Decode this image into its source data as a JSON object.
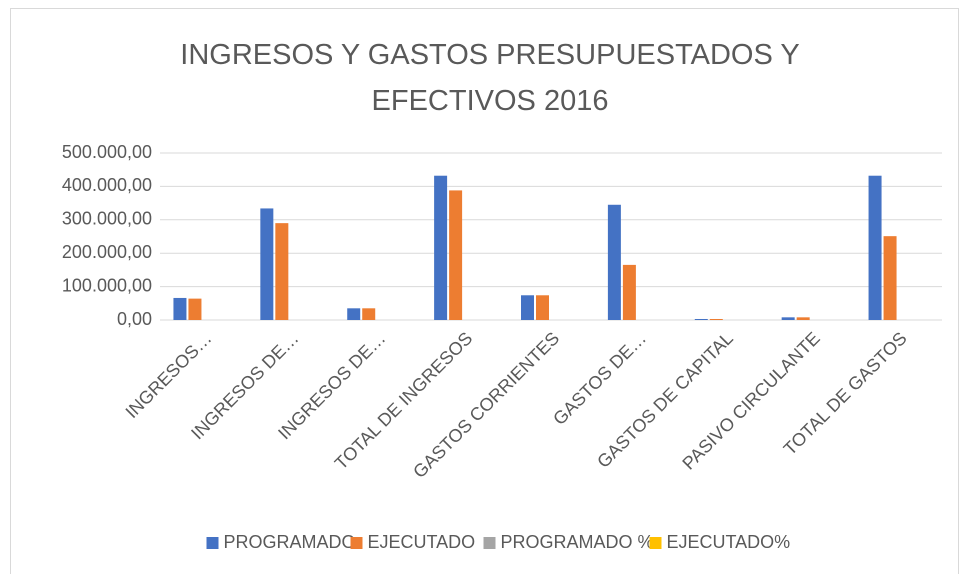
{
  "chart_data": {
    "type": "bar",
    "title": "INGRESOS Y GASTOS PRESUPUESTADOS Y EFECTIVOS  2016",
    "categories": [
      "INGRESOS…",
      "INGRESOS DE…",
      "INGRESOS DE…",
      "TOTAL DE INGRESOS",
      "GASTOS CORRIENTES",
      "GASTOS DE…",
      "GASTOS DE CAPITAL",
      "PASIVO CIRCULANTE",
      "TOTAL DE GASTOS"
    ],
    "series": [
      {
        "name": "PROGRAMADO",
        "color": "#4472c4",
        "values": [
          66000,
          334000,
          35000,
          432000,
          74000,
          345000,
          3000,
          8000,
          432000
        ]
      },
      {
        "name": "EJECUTADO",
        "color": "#ed7d31",
        "values": [
          64000,
          290000,
          35000,
          388000,
          74000,
          165000,
          3000,
          8000,
          251000
        ]
      },
      {
        "name": "PROGRAMADO %",
        "color": "#a5a5a5",
        "values": [
          null,
          null,
          null,
          null,
          null,
          null,
          null,
          null,
          null
        ]
      },
      {
        "name": "EJECUTADO%",
        "color": "#ffc000",
        "values": [
          null,
          null,
          null,
          null,
          null,
          null,
          null,
          null,
          null
        ]
      }
    ],
    "ylim": [
      0,
      500000
    ],
    "yticks": [
      {
        "value": 0,
        "label": "0,00"
      },
      {
        "value": 100000,
        "label": "100.000,00"
      },
      {
        "value": 200000,
        "label": "200.000,00"
      },
      {
        "value": 300000,
        "label": "300.000,00"
      },
      {
        "value": 400000,
        "label": "400.000,00"
      },
      {
        "value": 500000,
        "label": "500.000,00"
      }
    ],
    "grid": true,
    "legend": "bottom"
  }
}
